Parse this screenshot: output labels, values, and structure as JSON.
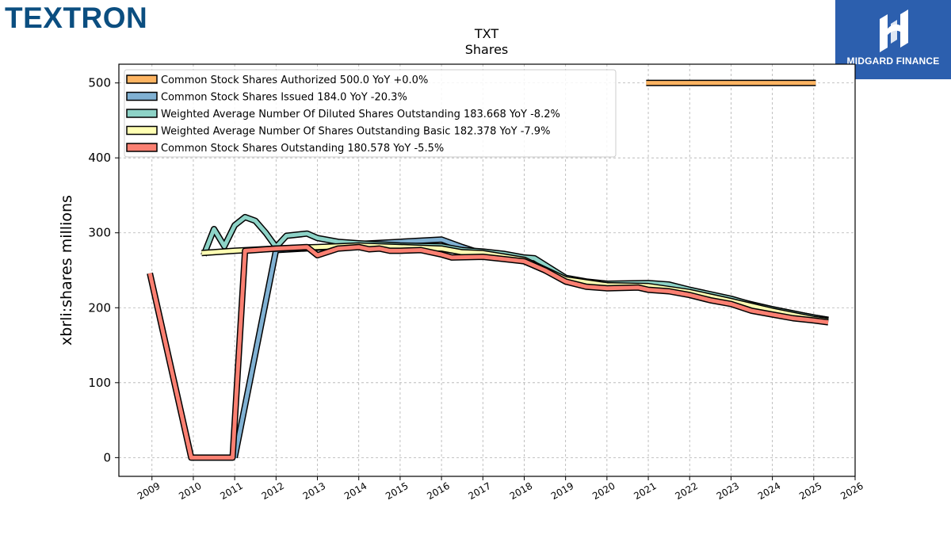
{
  "brand": {
    "name": "TEXTRON"
  },
  "partner": {
    "name": "MIDGARD FINANCE",
    "color": "#2c5fae"
  },
  "chart_data": {
    "type": "line",
    "title": "TXT",
    "subtitle": "Shares",
    "ylabel": "xbrli:shares millions",
    "xlabel": "",
    "xlim": [
      2008.2,
      2026.0
    ],
    "ylim": [
      -25,
      525
    ],
    "yticks": [
      0,
      100,
      200,
      300,
      400,
      500
    ],
    "xticks": [
      2009,
      2010,
      2011,
      2012,
      2013,
      2014,
      2015,
      2016,
      2017,
      2018,
      2019,
      2020,
      2021,
      2022,
      2023,
      2024,
      2025,
      2026
    ],
    "grid": true,
    "legend_position": "top-left",
    "series": [
      {
        "name": "Common Stock Shares Authorized",
        "legend": "Common Stock Shares Authorized  500.0 YoY +0.0%",
        "color": "#fdb462",
        "points": [
          [
            2020.95,
            500
          ],
          [
            2025.05,
            500
          ]
        ]
      },
      {
        "name": "Common Stock Shares Issued",
        "legend": "Common Stock Shares Issued  184.0 YoY -20.3%",
        "color": "#80b1d3",
        "points": [
          [
            2011.0,
            0
          ],
          [
            2012.0,
            277
          ],
          [
            2013.0,
            280
          ],
          [
            2014.0,
            285
          ],
          [
            2015.0,
            288
          ],
          [
            2016.0,
            291
          ],
          [
            2016.5,
            281
          ],
          [
            2017.0,
            272
          ],
          [
            2018.0,
            262
          ],
          [
            2019.0,
            238
          ],
          [
            2020.0,
            231
          ],
          [
            2021.0,
            230
          ],
          [
            2022.0,
            224
          ],
          [
            2023.0,
            211
          ],
          [
            2024.0,
            198
          ],
          [
            2025.0,
            187
          ],
          [
            2025.35,
            184
          ]
        ]
      },
      {
        "name": "Weighted Average Number Of Diluted Shares Outstanding",
        "legend": "Weighted Average Number Of Diluted Shares Outstanding  183.668 YoY -8.2%",
        "color": "#8dd3c7",
        "points": [
          [
            2010.25,
            270
          ],
          [
            2010.5,
            305
          ],
          [
            2010.75,
            282
          ],
          [
            2011.0,
            310
          ],
          [
            2011.25,
            321
          ],
          [
            2011.5,
            316
          ],
          [
            2011.75,
            300
          ],
          [
            2012.0,
            281
          ],
          [
            2012.25,
            296
          ],
          [
            2012.75,
            299
          ],
          [
            2013.0,
            293
          ],
          [
            2013.5,
            288
          ],
          [
            2014.0,
            286
          ],
          [
            2015.0,
            283
          ],
          [
            2016.0,
            282
          ],
          [
            2016.5,
            277
          ],
          [
            2017.0,
            275
          ],
          [
            2017.5,
            272
          ],
          [
            2018.0,
            267
          ],
          [
            2018.25,
            266
          ],
          [
            2019.0,
            240
          ],
          [
            2019.5,
            235
          ],
          [
            2020.0,
            232
          ],
          [
            2021.0,
            233
          ],
          [
            2021.5,
            231
          ],
          [
            2022.0,
            224
          ],
          [
            2023.0,
            212
          ],
          [
            2023.5,
            204
          ],
          [
            2024.0,
            198
          ],
          [
            2025.0,
            187
          ],
          [
            2025.35,
            183.7
          ]
        ]
      },
      {
        "name": "Weighted Average Number Of Shares Outstanding Basic",
        "legend": "Weighted Average Number Of Shares Outstanding Basic  182.378 YoY -7.9%",
        "color": "#ffffb3",
        "points": [
          [
            2010.2,
            273
          ],
          [
            2011.0,
            276
          ],
          [
            2012.0,
            279
          ],
          [
            2013.0,
            281
          ],
          [
            2014.0,
            283
          ],
          [
            2015.0,
            281
          ],
          [
            2016.0,
            279
          ],
          [
            2016.5,
            274
          ],
          [
            2017.0,
            273
          ],
          [
            2018.0,
            264
          ],
          [
            2019.0,
            238
          ],
          [
            2020.0,
            230
          ],
          [
            2021.0,
            229
          ],
          [
            2022.0,
            221
          ],
          [
            2023.0,
            209
          ],
          [
            2024.0,
            196
          ],
          [
            2025.0,
            185
          ],
          [
            2025.35,
            182.4
          ]
        ]
      },
      {
        "name": "Common Stock Shares Outstanding",
        "legend": "Common Stock Shares Outstanding  180.578 YoY -5.5%",
        "color": "#fb8072",
        "points": [
          [
            2008.95,
            246
          ],
          [
            2009.95,
            0
          ],
          [
            2010.95,
            0
          ],
          [
            2011.25,
            276
          ],
          [
            2012.0,
            279
          ],
          [
            2012.75,
            281
          ],
          [
            2013.0,
            270
          ],
          [
            2013.5,
            279
          ],
          [
            2014.0,
            281
          ],
          [
            2014.25,
            278
          ],
          [
            2014.5,
            279
          ],
          [
            2014.75,
            276
          ],
          [
            2015.0,
            276
          ],
          [
            2015.5,
            277
          ],
          [
            2016.0,
            271
          ],
          [
            2016.25,
            267
          ],
          [
            2017.0,
            268
          ],
          [
            2017.5,
            265
          ],
          [
            2018.0,
            262
          ],
          [
            2018.5,
            250
          ],
          [
            2019.0,
            235
          ],
          [
            2019.5,
            228
          ],
          [
            2020.0,
            226
          ],
          [
            2020.75,
            227
          ],
          [
            2021.0,
            224
          ],
          [
            2021.5,
            222
          ],
          [
            2022.0,
            217
          ],
          [
            2022.5,
            210
          ],
          [
            2023.0,
            205
          ],
          [
            2023.5,
            196
          ],
          [
            2024.0,
            191
          ],
          [
            2024.5,
            186
          ],
          [
            2025.0,
            183
          ],
          [
            2025.35,
            180.6
          ]
        ]
      }
    ]
  }
}
